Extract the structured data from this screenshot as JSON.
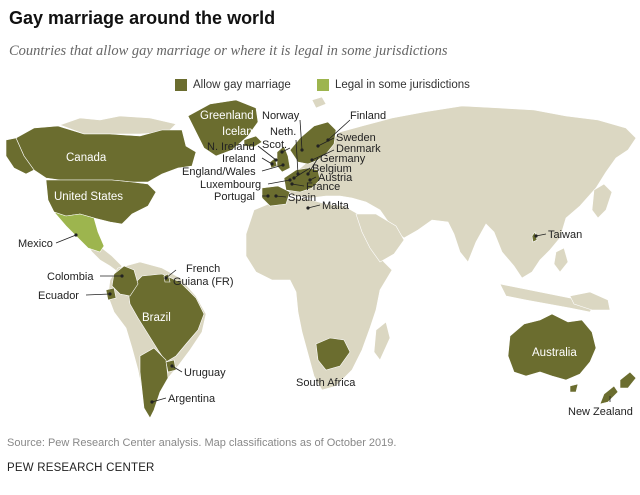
{
  "title": "Gay marriage around the world",
  "subtitle": "Countries that allow gay marriage or where it is legal in some jurisdictions",
  "legend": [
    {
      "label": "Allow gay marriage",
      "color": "#6b6d2f"
    },
    {
      "label": "Legal in some jurisdictions",
      "color": "#9db54e"
    }
  ],
  "colors": {
    "land": "#dbd7c2",
    "allow": "#6b6d2f",
    "partial": "#9db54e",
    "borders": "#ffffff",
    "leader": "#222222"
  },
  "countries": {
    "canada": "Canada",
    "united_states": "United States",
    "greenland": "Greenland",
    "iceland": "Iceland",
    "brazil": "Brazil",
    "australia": "Australia"
  },
  "callouts": {
    "norway": "Norway",
    "finland": "Finland",
    "netherlands": "Neth.",
    "sweden": "Sweden",
    "scotland": "Scot.",
    "denmark": "Denmark",
    "northern_ireland": "N. Ireland",
    "germany": "Germany",
    "ireland": "Ireland",
    "belgium": "Belgium",
    "england_wales": "England/Wales",
    "austria": "Austria",
    "luxembourg": "Luxembourg",
    "france": "France",
    "portugal": "Portugal",
    "spain": "Spain",
    "malta": "Malta",
    "mexico": "Mexico",
    "taiwan": "Taiwan",
    "french_guiana_line1": "French",
    "french_guiana_line2": "Guiana (FR)",
    "colombia": "Colombia",
    "ecuador": "Ecuador",
    "uruguay": "Uruguay",
    "south_africa": "South Africa",
    "argentina": "Argentina",
    "new_zealand": "New Zealand"
  },
  "source": "Source: Pew Research Center analysis. Map classifications as of October 2019.",
  "credit": "PEW RESEARCH CENTER"
}
